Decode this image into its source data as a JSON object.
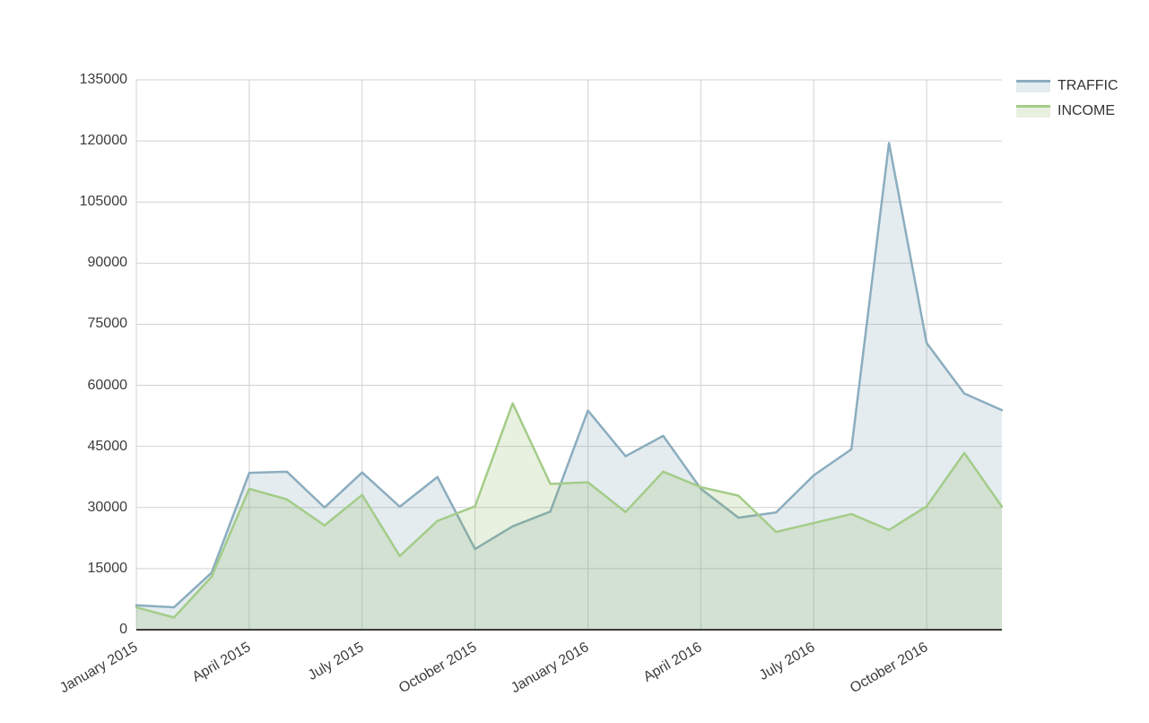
{
  "page": {
    "background": "#ffffff"
  },
  "chart_data": {
    "type": "area",
    "title": "",
    "xlabel": "",
    "ylabel": "",
    "x": [
      "January 2015",
      "February 2015",
      "March 2015",
      "April 2015",
      "May 2015",
      "June 2015",
      "July 2015",
      "August 2015",
      "September 2015",
      "October 2015",
      "November 2015",
      "December 2015",
      "January 2016",
      "February 2016",
      "March 2016",
      "April 2016",
      "May 2016",
      "June 2016",
      "July 2016",
      "August 2016",
      "September 2016",
      "October 2016",
      "November 2016",
      "December 2016"
    ],
    "x_tick_indices": [
      0,
      3,
      6,
      9,
      12,
      15,
      18,
      21
    ],
    "x_tick_labels": [
      "January 2015",
      "April 2015",
      "July 2015",
      "October 2015",
      "January 2016",
      "April 2016",
      "July 2016",
      "October 2016"
    ],
    "y_ticks": [
      0,
      15000,
      30000,
      45000,
      60000,
      75000,
      90000,
      105000,
      120000,
      135000
    ],
    "ylim": [
      0,
      135000
    ],
    "grid": true,
    "legend_position": "top-right",
    "series": [
      {
        "name": "TRAFFIC",
        "line_color": "#8badbf",
        "fill_color": "#6e9baf",
        "fill_opacity": 0.19,
        "values": [
          6000,
          5500,
          14000,
          38500,
          38800,
          30000,
          38600,
          30200,
          37500,
          19800,
          25400,
          29000,
          53800,
          42600,
          47600,
          34600,
          27500,
          28800,
          37900,
          44300,
          119500,
          70400,
          58000,
          53900
        ]
      },
      {
        "name": "INCOME",
        "line_color": "#a4cc89",
        "fill_color": "#7fb34f",
        "fill_opacity": 0.18,
        "values": [
          5500,
          3000,
          13000,
          34600,
          32000,
          25600,
          33100,
          18100,
          26700,
          30300,
          55600,
          35800,
          36200,
          28900,
          38800,
          35000,
          32900,
          24000,
          26200,
          28400,
          24500,
          30300,
          43400,
          30200
        ]
      }
    ],
    "axis_color": "#3b3b3b",
    "grid_color": "#d2d2d2",
    "label_color": "#3d3d3d"
  }
}
